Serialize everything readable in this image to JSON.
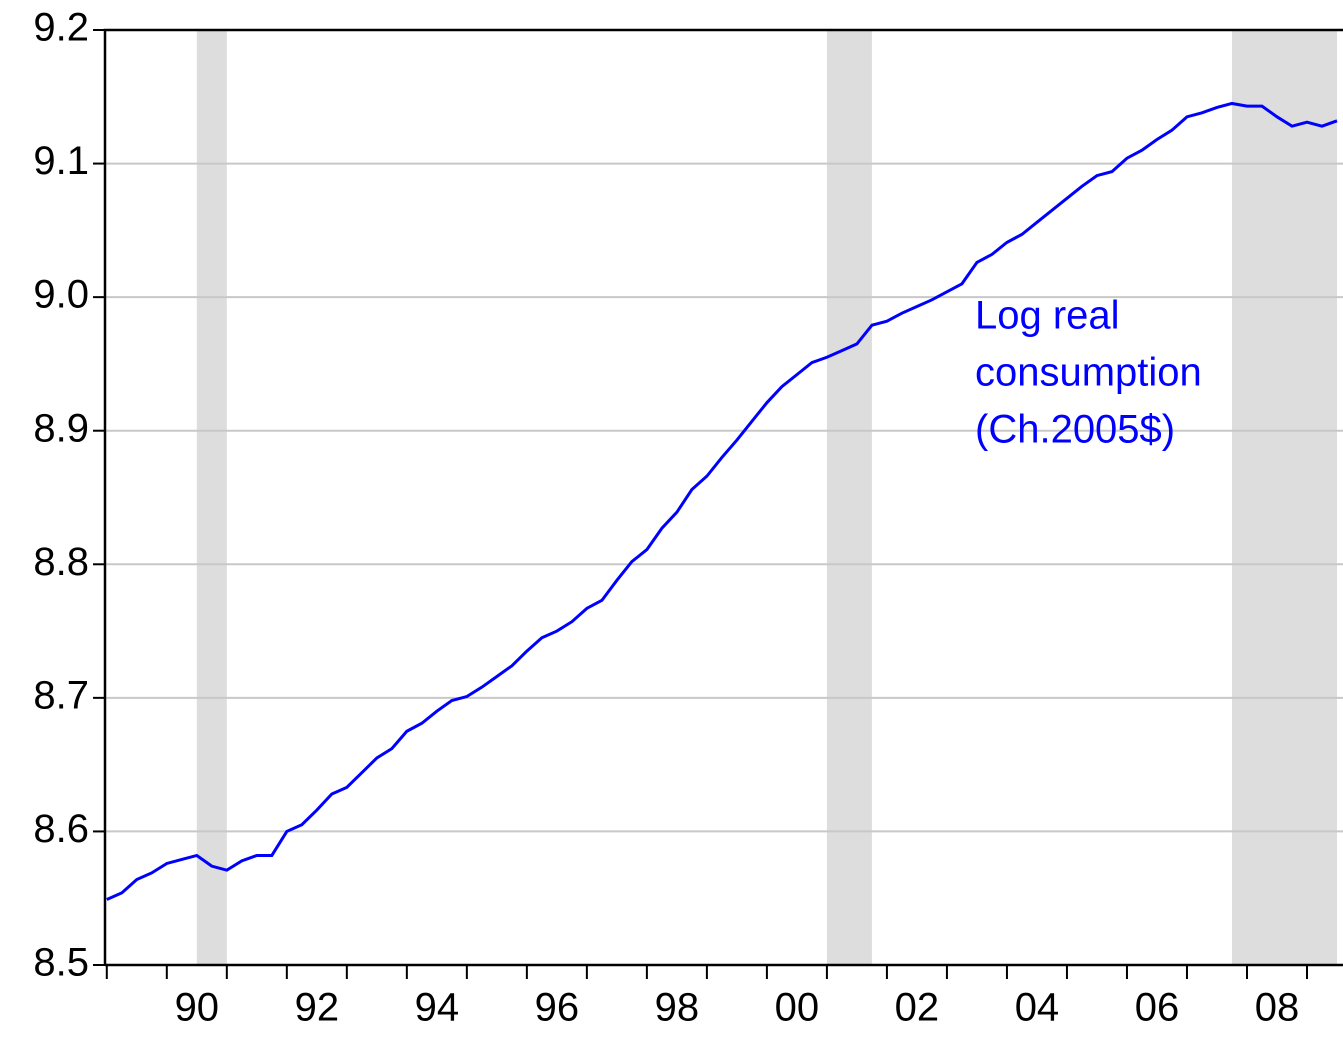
{
  "chart_data": {
    "type": "line",
    "annotation": [
      "Log real",
      "consumption",
      "(Ch.2005$)"
    ],
    "x": [
      1989,
      1989.25,
      1989.5,
      1989.75,
      1990,
      1990.25,
      1990.5,
      1990.75,
      1991,
      1991.25,
      1991.5,
      1991.75,
      1992,
      1992.25,
      1992.5,
      1992.75,
      1993,
      1993.25,
      1993.5,
      1993.75,
      1994,
      1994.25,
      1994.5,
      1994.75,
      1995,
      1995.25,
      1995.5,
      1995.75,
      1996,
      1996.25,
      1996.5,
      1996.75,
      1997,
      1997.25,
      1997.5,
      1997.75,
      1998,
      1998.25,
      1998.5,
      1998.75,
      1999,
      1999.25,
      1999.5,
      1999.75,
      2000,
      2000.25,
      2000.5,
      2000.75,
      2001,
      2001.25,
      2001.5,
      2001.75,
      2002,
      2002.25,
      2002.5,
      2002.75,
      2003,
      2003.25,
      2003.5,
      2003.75,
      2004,
      2004.25,
      2004.5,
      2004.75,
      2005,
      2005.25,
      2005.5,
      2005.75,
      2006,
      2006.25,
      2006.5,
      2006.75,
      2007,
      2007.25,
      2007.5,
      2007.75,
      2008,
      2008.25,
      2008.5,
      2008.75,
      2009,
      2009.25,
      2009.5
    ],
    "series": [
      {
        "name": "Log real consumption (Ch.2005$)",
        "color": "#0000ff",
        "values": [
          8.549,
          8.554,
          8.564,
          8.569,
          8.576,
          8.579,
          8.582,
          8.574,
          8.571,
          8.578,
          8.582,
          8.582,
          8.6,
          8.605,
          8.616,
          8.628,
          8.633,
          8.644,
          8.655,
          8.662,
          8.675,
          8.681,
          8.69,
          8.698,
          8.701,
          8.708,
          8.716,
          8.724,
          8.735,
          8.745,
          8.75,
          8.757,
          8.767,
          8.773,
          8.788,
          8.802,
          8.811,
          8.827,
          8.839,
          8.856,
          8.866,
          8.88,
          8.893,
          8.907,
          8.921,
          8.933,
          8.942,
          8.951,
          8.955,
          8.96,
          8.965,
          8.979,
          8.982,
          8.988,
          8.993,
          8.998,
          9.004,
          9.01,
          9.026,
          9.032,
          9.041,
          9.047,
          9.056,
          9.065,
          9.074,
          9.083,
          9.091,
          9.094,
          9.104,
          9.11,
          9.118,
          9.125,
          9.135,
          9.138,
          9.142,
          9.145,
          9.143,
          9.143,
          9.135,
          9.128,
          9.131,
          9.128,
          9.132
        ]
      }
    ],
    "recessions": [
      [
        1990.5,
        1991.0
      ],
      [
        2001.0,
        2001.75
      ],
      [
        2007.75,
        2009.5
      ]
    ],
    "recession_color": "#dddddd",
    "xlim": [
      1988.97,
      2009.6
    ],
    "xticks": [
      {
        "value": 1990,
        "label": "90"
      },
      {
        "value": 1992,
        "label": "92"
      },
      {
        "value": 1994,
        "label": "94"
      },
      {
        "value": 1996,
        "label": "96"
      },
      {
        "value": 1998,
        "label": "98"
      },
      {
        "value": 2000,
        "label": "00"
      },
      {
        "value": 2002,
        "label": "02"
      },
      {
        "value": 2004,
        "label": "04"
      },
      {
        "value": 2006,
        "label": "06"
      },
      {
        "value": 2008,
        "label": "08"
      }
    ],
    "xminor_ticks": [
      1989,
      1991,
      1993,
      1995,
      1997,
      1999,
      2001,
      2003,
      2005,
      2007,
      2009
    ],
    "ylim": [
      8.5,
      9.2
    ],
    "yticks": [
      8.5,
      8.6,
      8.7,
      8.8,
      8.9,
      {
        "value": 9,
        "label": "9.0"
      },
      9.1,
      9.2
    ],
    "grid": true
  }
}
